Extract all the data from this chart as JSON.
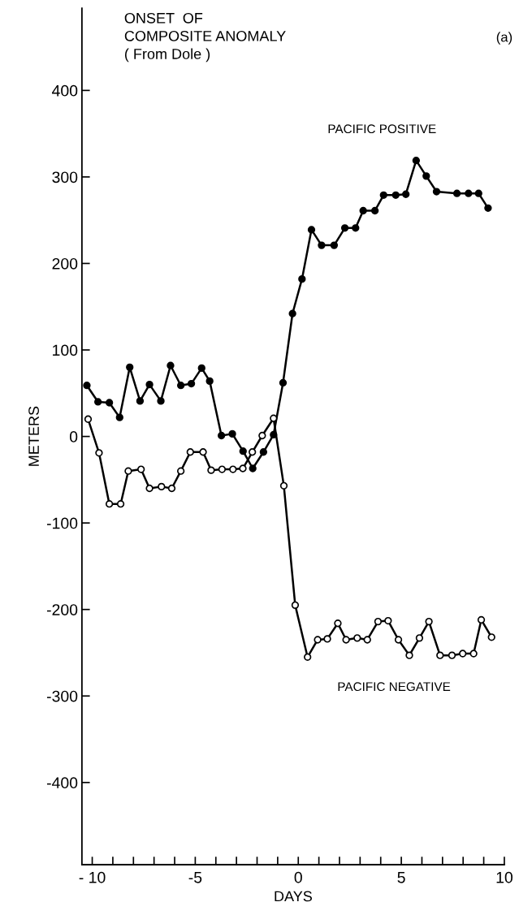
{
  "chart_data": {
    "type": "line",
    "title": "ONSET  OF\nCOMPOSITE ANOMALY\n( From Dole )",
    "xlabel": "DAYS",
    "ylabel": "METERS",
    "annotations": [
      "(a)"
    ],
    "xlim": [
      -10.5,
      10
    ],
    "ylim": [
      -495,
      495
    ],
    "xticks": [
      {
        "value": -10,
        "label": "- 10"
      },
      {
        "value": -9,
        "label": null
      },
      {
        "value": -8,
        "label": null
      },
      {
        "value": -7,
        "label": null
      },
      {
        "value": -6,
        "label": null
      },
      {
        "value": -5,
        "label": "-5"
      },
      {
        "value": -4,
        "label": null
      },
      {
        "value": -3,
        "label": null
      },
      {
        "value": -2,
        "label": null
      },
      {
        "value": -1,
        "label": null
      },
      {
        "value": 0,
        "label": "0"
      },
      {
        "value": 1,
        "label": null
      },
      {
        "value": 2,
        "label": null
      },
      {
        "value": 3,
        "label": null
      },
      {
        "value": 4,
        "label": null
      },
      {
        "value": 5,
        "label": "5"
      },
      {
        "value": 6,
        "label": null
      },
      {
        "value": 7,
        "label": null
      },
      {
        "value": 8,
        "label": null
      },
      {
        "value": 9,
        "label": null
      },
      {
        "value": 10,
        "label": "10"
      }
    ],
    "yticks": [
      400,
      300,
      200,
      100,
      0,
      -100,
      -200,
      -300,
      -400
    ],
    "grid": false,
    "legend": false,
    "marker": "circle",
    "line_style": "solid",
    "series": [
      {
        "name": "PACIFIC POSITIVE",
        "color": "#000000",
        "x": [
          -10.26,
          -9.72,
          -9.17,
          -8.67,
          -8.18,
          -7.68,
          -7.22,
          -6.67,
          -6.2,
          -5.7,
          -5.19,
          -4.69,
          -4.3,
          -3.73,
          -3.2,
          -2.68,
          -2.21,
          -1.69,
          -1.2,
          -0.74,
          -0.28,
          0.18,
          0.64,
          1.13,
          1.74,
          2.26,
          2.78,
          3.15,
          3.72,
          4.14,
          4.73,
          5.22,
          5.72,
          6.21,
          6.71,
          7.7,
          8.26,
          8.75,
          9.21
        ],
        "values": [
          59,
          40,
          39,
          22,
          80,
          41,
          60,
          41,
          82,
          59,
          61,
          79,
          64,
          1,
          3,
          -17,
          -37,
          -18,
          2,
          62,
          142,
          182,
          239,
          221,
          221,
          241,
          241,
          261,
          261,
          279,
          279,
          280,
          319,
          301,
          283,
          281,
          281,
          281,
          264
        ]
      },
      {
        "name": "PACIFIC NEGATIVE",
        "color": "#000000",
        "x": [
          -10.2,
          -9.67,
          -9.17,
          -8.62,
          -8.25,
          -7.63,
          -7.22,
          -6.64,
          -6.14,
          -5.7,
          -5.24,
          -4.62,
          -4.23,
          -3.7,
          -3.17,
          -2.69,
          -2.23,
          -1.75,
          -1.2,
          -0.7,
          -0.15,
          0.45,
          0.94,
          1.41,
          1.92,
          2.32,
          2.86,
          3.35,
          3.87,
          4.36,
          4.86,
          5.39,
          5.88,
          6.34,
          6.88,
          7.46,
          7.98,
          8.51,
          8.88,
          9.38
        ],
        "values": [
          20,
          -19,
          -78,
          -78,
          -40,
          -38,
          -60,
          -58,
          -60,
          -40,
          -18,
          -18,
          -39,
          -38,
          -38,
          -37,
          -18,
          1,
          21,
          -57,
          -195,
          -255,
          -235,
          -234,
          -216,
          -235,
          -233,
          -235,
          -214,
          -213,
          -235,
          -253,
          -233,
          -214,
          -253,
          -253,
          -251,
          -251,
          -212,
          -232
        ]
      }
    ]
  }
}
